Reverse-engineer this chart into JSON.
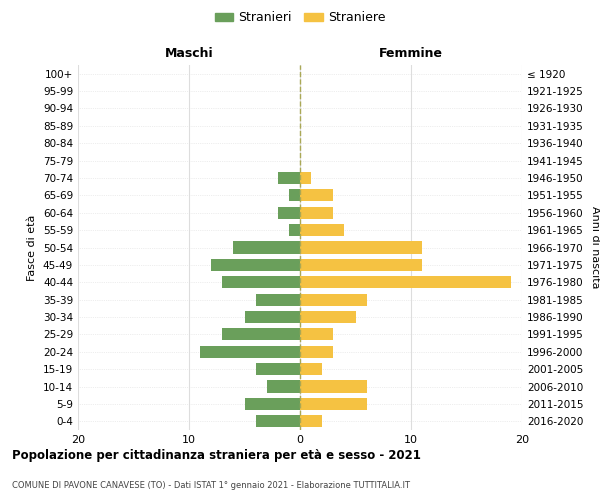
{
  "age_groups": [
    "100+",
    "95-99",
    "90-94",
    "85-89",
    "80-84",
    "75-79",
    "70-74",
    "65-69",
    "60-64",
    "55-59",
    "50-54",
    "45-49",
    "40-44",
    "35-39",
    "30-34",
    "25-29",
    "20-24",
    "15-19",
    "10-14",
    "5-9",
    "0-4"
  ],
  "birth_years": [
    "≤ 1920",
    "1921-1925",
    "1926-1930",
    "1931-1935",
    "1936-1940",
    "1941-1945",
    "1946-1950",
    "1951-1955",
    "1956-1960",
    "1961-1965",
    "1966-1970",
    "1971-1975",
    "1976-1980",
    "1981-1985",
    "1986-1990",
    "1991-1995",
    "1996-2000",
    "2001-2005",
    "2006-2010",
    "2011-2015",
    "2016-2020"
  ],
  "maschi": [
    0,
    0,
    0,
    0,
    0,
    0,
    2,
    1,
    2,
    1,
    6,
    8,
    7,
    4,
    5,
    7,
    9,
    4,
    3,
    5,
    4
  ],
  "femmine": [
    0,
    0,
    0,
    0,
    0,
    0,
    1,
    3,
    3,
    4,
    11,
    11,
    19,
    6,
    5,
    3,
    3,
    2,
    6,
    6,
    2
  ],
  "color_maschi": "#6a9f5b",
  "color_femmine": "#f5c242",
  "title": "Popolazione per cittadinanza straniera per età e sesso - 2021",
  "subtitle": "COMUNE DI PAVONE CANAVESE (TO) - Dati ISTAT 1° gennaio 2021 - Elaborazione TUTTITALIA.IT",
  "xlabel_left": "Maschi",
  "xlabel_right": "Femmine",
  "ylabel_left": "Fasce di età",
  "ylabel_right": "Anni di nascita",
  "legend_maschi": "Stranieri",
  "legend_femmine": "Straniere",
  "xlim": 20,
  "background_color": "#ffffff",
  "grid_color": "#dddddd",
  "center_line_color": "#aaa855"
}
